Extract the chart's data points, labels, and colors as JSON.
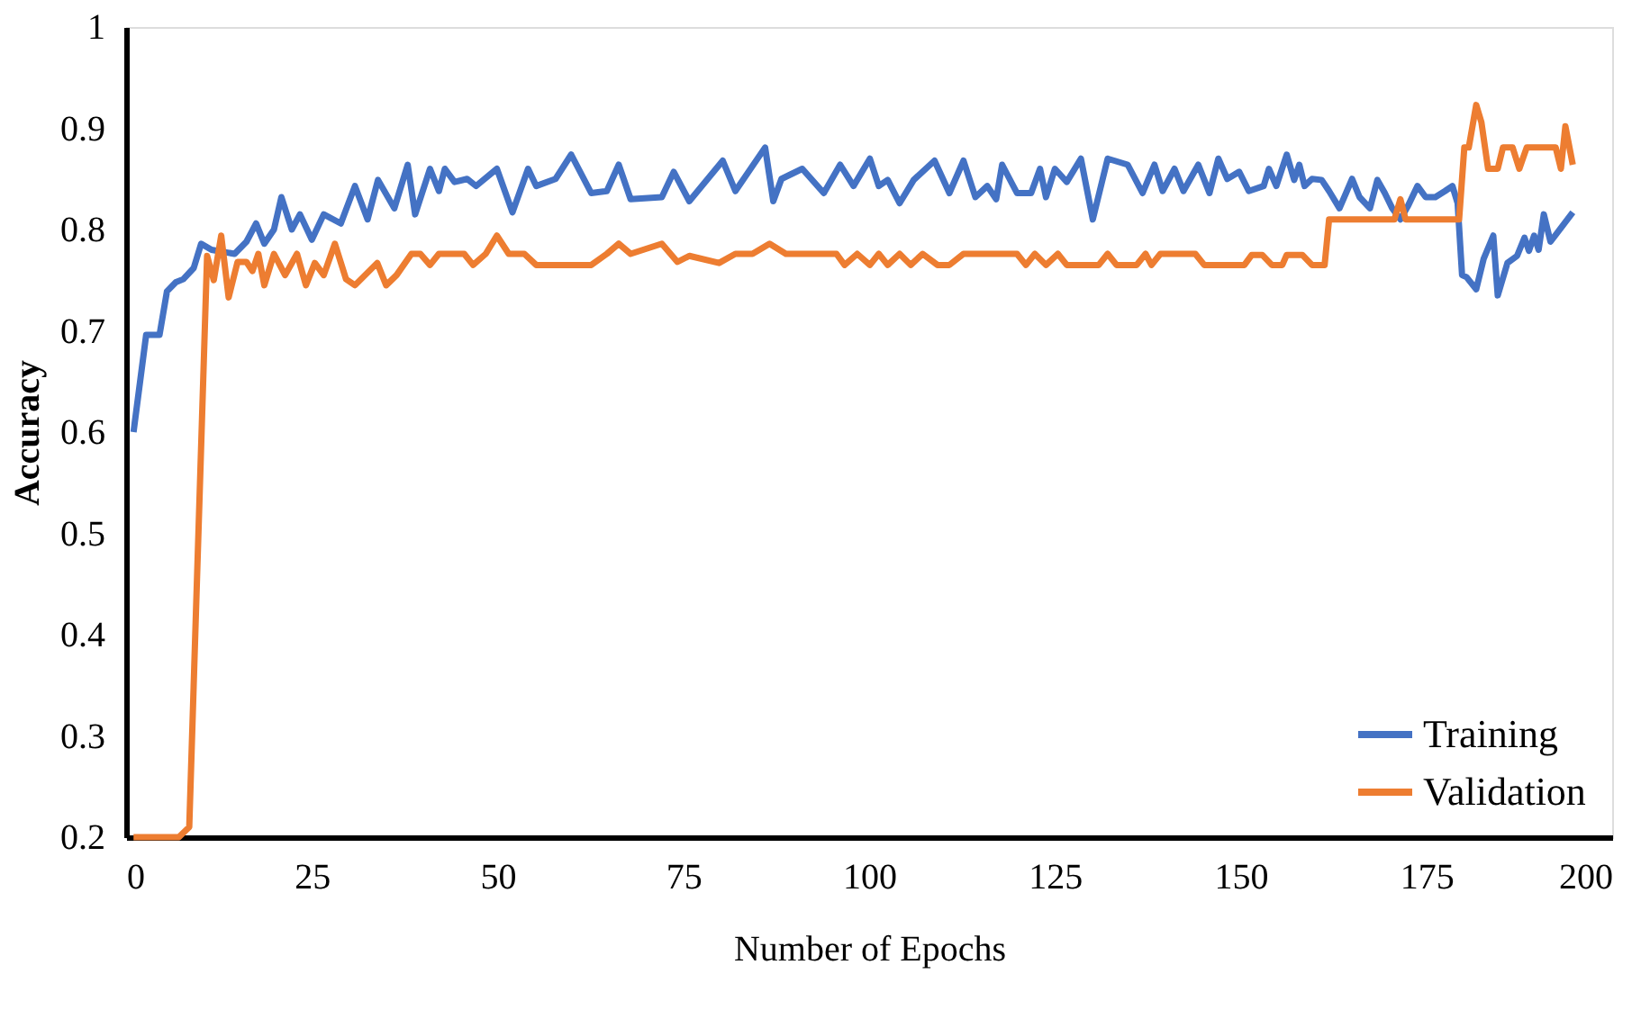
{
  "chart_data": {
    "type": "line",
    "xlabel": "Number of Epochs",
    "ylabel": "Accuracy",
    "xlim": [
      0,
      200
    ],
    "xticks": [
      0,
      25,
      50,
      75,
      100,
      125,
      150,
      175,
      200
    ],
    "ylim": [
      0.2,
      1
    ],
    "yticks": [
      0.2,
      0.3,
      0.4,
      0.5,
      0.6,
      0.7,
      0.8,
      0.9,
      1
    ],
    "grid": false,
    "legend": "bottom right",
    "line_style": "solid",
    "marker": "none",
    "series": [
      {
        "name": "Training",
        "color": "#4472c4",
        "x": [
          1,
          2.7,
          4.5,
          5.5,
          6.7,
          7.7,
          9.1,
          10.1,
          11.5,
          14.6,
          16.2,
          17.5,
          18.6,
          19.9,
          20.9,
          22.3,
          23.4,
          25,
          26.6,
          28.9,
          30.8,
          32.5,
          33.9,
          36.1,
          37.9,
          38.9,
          40.9,
          42.1,
          42.9,
          44.2,
          45.9,
          47.1,
          49.9,
          52,
          54.1,
          55.2,
          57.8,
          59.9,
          62.6,
          64.7,
          66.3,
          67.9,
          72.1,
          73.7,
          75.8,
          80.3,
          82,
          86,
          87.1,
          88.2,
          91,
          93.9,
          96.1,
          97.9,
          100.1,
          101.3,
          102.5,
          104.1,
          106,
          108.8,
          110.8,
          112.7,
          114.3,
          115.9,
          117.1,
          117.9,
          119.9,
          121.8,
          123,
          123.8,
          125,
          126.6,
          128.5,
          130.1,
          132.1,
          134.8,
          136.8,
          138.4,
          139.5,
          141.1,
          142.3,
          144.3,
          145.8,
          147,
          148.2,
          149.8,
          151.1,
          153.1,
          153.8,
          154.8,
          156.2,
          157.2,
          157.9,
          158.6,
          159.6,
          160.9,
          161.9,
          163.3,
          165,
          166,
          167.4,
          168.4,
          169.4,
          170.4,
          171.5,
          172.5,
          173.8,
          174.9,
          176.2,
          177.5,
          178.5,
          179.2,
          179.8,
          180.4,
          181.7,
          182.7,
          184,
          184.6,
          185.9,
          187.2,
          188.2,
          188.8,
          189.5,
          190.1,
          190.8,
          191.7,
          194.7
        ],
        "values": [
          0.6,
          0.696,
          0.696,
          0.739,
          0.748,
          0.751,
          0.762,
          0.786,
          0.78,
          0.776,
          0.788,
          0.806,
          0.786,
          0.8,
          0.832,
          0.8,
          0.815,
          0.79,
          0.815,
          0.806,
          0.843,
          0.81,
          0.849,
          0.821,
          0.864,
          0.815,
          0.86,
          0.838,
          0.86,
          0.847,
          0.85,
          0.843,
          0.86,
          0.817,
          0.86,
          0.843,
          0.85,
          0.874,
          0.836,
          0.838,
          0.864,
          0.83,
          0.832,
          0.857,
          0.828,
          0.868,
          0.838,
          0.881,
          0.828,
          0.85,
          0.86,
          0.836,
          0.864,
          0.843,
          0.87,
          0.843,
          0.849,
          0.826,
          0.849,
          0.868,
          0.836,
          0.868,
          0.832,
          0.843,
          0.83,
          0.864,
          0.836,
          0.836,
          0.86,
          0.832,
          0.86,
          0.847,
          0.87,
          0.81,
          0.87,
          0.864,
          0.836,
          0.864,
          0.838,
          0.86,
          0.838,
          0.864,
          0.836,
          0.87,
          0.85,
          0.857,
          0.838,
          0.843,
          0.86,
          0.843,
          0.874,
          0.849,
          0.864,
          0.843,
          0.85,
          0.849,
          0.838,
          0.821,
          0.85,
          0.832,
          0.821,
          0.849,
          0.836,
          0.821,
          0.81,
          0.823,
          0.843,
          0.832,
          0.832,
          0.838,
          0.843,
          0.826,
          0.755,
          0.753,
          0.741,
          0.771,
          0.794,
          0.735,
          0.767,
          0.774,
          0.792,
          0.779,
          0.794,
          0.78,
          0.815,
          0.788,
          0.817
        ]
      },
      {
        "name": "Validation",
        "color": "#ed7d31",
        "x": [
          1,
          7.1,
          8.5,
          10.9,
          11.8,
          12.8,
          13.8,
          15,
          16.2,
          17,
          17.8,
          18.6,
          19.9,
          21.4,
          23,
          24.2,
          25.4,
          26.6,
          28.1,
          29.6,
          30.8,
          33.8,
          35,
          36.4,
          38.4,
          39.6,
          40.9,
          42.1,
          45.5,
          46.7,
          48.4,
          49.9,
          51.5,
          53.6,
          55.2,
          62.6,
          64.7,
          66.3,
          67.9,
          72.1,
          74.2,
          75.8,
          79.8,
          82,
          84.3,
          86.6,
          88.8,
          95.6,
          96.7,
          98.4,
          100.1,
          101.3,
          102.5,
          104.1,
          105.6,
          107.2,
          109.2,
          110.8,
          112.7,
          119.9,
          121.1,
          122.3,
          123.8,
          125.4,
          126.6,
          130.9,
          132.1,
          133.3,
          136,
          137.2,
          138,
          139.2,
          143.9,
          145.1,
          150.5,
          151.5,
          152.9,
          154.2,
          155.6,
          156.2,
          158.3,
          159.6,
          161.3,
          161.9,
          170.7,
          171.5,
          172.2,
          179.4,
          180.1,
          180.7,
          181.7,
          182.4,
          183.3,
          184.6,
          185.3,
          186.6,
          187.5,
          188.5,
          192.4,
          193.1,
          193.7,
          194.7
        ],
        "values": [
          0.2,
          0.2,
          0.21,
          0.774,
          0.75,
          0.794,
          0.733,
          0.768,
          0.768,
          0.759,
          0.776,
          0.745,
          0.776,
          0.755,
          0.776,
          0.745,
          0.767,
          0.755,
          0.786,
          0.751,
          0.745,
          0.767,
          0.745,
          0.755,
          0.776,
          0.776,
          0.765,
          0.776,
          0.776,
          0.765,
          0.776,
          0.794,
          0.776,
          0.776,
          0.765,
          0.765,
          0.776,
          0.786,
          0.776,
          0.786,
          0.768,
          0.774,
          0.767,
          0.776,
          0.776,
          0.786,
          0.776,
          0.776,
          0.765,
          0.776,
          0.765,
          0.776,
          0.765,
          0.776,
          0.765,
          0.776,
          0.765,
          0.765,
          0.776,
          0.776,
          0.765,
          0.776,
          0.765,
          0.776,
          0.765,
          0.765,
          0.776,
          0.765,
          0.765,
          0.776,
          0.765,
          0.776,
          0.776,
          0.765,
          0.765,
          0.775,
          0.775,
          0.765,
          0.765,
          0.775,
          0.775,
          0.765,
          0.765,
          0.81,
          0.81,
          0.83,
          0.81,
          0.81,
          0.881,
          0.881,
          0.923,
          0.906,
          0.86,
          0.86,
          0.881,
          0.881,
          0.86,
          0.881,
          0.881,
          0.86,
          0.902,
          0.864
        ]
      }
    ]
  }
}
